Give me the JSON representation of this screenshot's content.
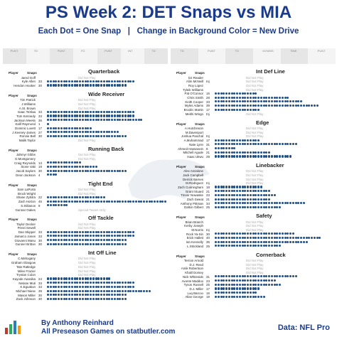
{
  "header": {
    "title": "PS Week 2: DET Snaps vs MIA",
    "subtitle_left": "Each Dot = One Snap",
    "subtitle_sep": "|",
    "subtitle_right": "Change in Background Color = New Drive"
  },
  "footer": {
    "byline": "By Anthony Reinhard",
    "byline2": "All Preseason Games on statbutler.com",
    "source": "Data: NFL Pro"
  },
  "labels": {
    "player": "Player",
    "snaps": "Snaps",
    "dnp": "Did Not Play",
    "special_teams": "Special Teams Only"
  },
  "drive_bars": {
    "offense": [
      "PUNT",
      "TD",
      "PUNT",
      "FG",
      "PUNT",
      "INT",
      "TD"
    ],
    "defense": [
      "TD",
      "PUNT",
      "TD",
      "DOWNS",
      "TIME",
      "PUNT"
    ]
  },
  "chart_data": {
    "type": "dot-strip",
    "title": "PS Week 2: DET Snaps vs MIA",
    "offense": [
      {
        "group": "Quarterback",
        "players": [
          {
            "name": "Jared Goff",
            "snaps": 0
          },
          {
            "name": "Kyle Allen",
            "snaps": 33
          },
          {
            "name": "Hendon Hooker",
            "snaps": 30
          }
        ]
      },
      {
        "group": "Wide Receiver",
        "players": [
          {
            "name": "Tim Patrick",
            "snaps": 0
          },
          {
            "name": "J.Williams",
            "snaps": 0
          },
          {
            "name": "A.St. Brown",
            "snaps": 0
          },
          {
            "name": "Isaac TeSlaa",
            "snaps": 33
          },
          {
            "name": "Tom Kennedy",
            "snaps": 33
          },
          {
            "name": "Jackson Meeks",
            "snaps": 36
          },
          {
            "name": "Kalif Raymond",
            "snaps": 1
          },
          {
            "name": "Dominic Lovett",
            "snaps": 17
          },
          {
            "name": "J.Keeney-James",
            "snaps": 27
          },
          {
            "name": "Ronnie Bell",
            "snaps": 30
          },
          {
            "name": "Malik Taylor",
            "snaps": 0
          }
        ]
      },
      {
        "group": "Running Back",
        "players": [
          {
            "name": "Jahmyr Gibbs",
            "snaps": 0
          },
          {
            "name": "D.Montgomery",
            "snaps": 0
          },
          {
            "name": "Craig Reynolds",
            "snaps": 13
          },
          {
            "name": "Sione Vaki",
            "snaps": 19
          },
          {
            "name": "Jacob Saylors",
            "snaps": 30
          },
          {
            "name": "Deon Jackson",
            "snaps": 4
          }
        ]
      },
      {
        "group": "Tight End",
        "players": [
          {
            "name": "Sam LaPorta",
            "snaps": 0
          },
          {
            "name": "Brock Wright",
            "snaps": 0
          },
          {
            "name": "Shane Zylstra",
            "snaps": 22
          },
          {
            "name": "Zach Horton",
            "snaps": 45
          },
          {
            "name": "S.Stilianos",
            "snaps": 8
          },
          {
            "name": "Gunnar Oakes",
            "snaps": 0,
            "note": "special_teams"
          }
        ]
      },
      {
        "group": "Off Tackle",
        "players": [
          {
            "name": "Taylor Decker",
            "snaps": 0
          },
          {
            "name": "Penei Sewell",
            "snaps": 0
          },
          {
            "name": "Dan Skipper",
            "snaps": 33
          },
          {
            "name": "Jamarco Jones",
            "snaps": 33
          },
          {
            "name": "Giovanni Manu",
            "snaps": 30
          },
          {
            "name": "Gunner Britton",
            "snaps": 30
          }
        ]
      },
      {
        "group": "Int Off Line",
        "players": [
          {
            "name": "C.Mahogany",
            "snaps": 0
          },
          {
            "name": "Graham Glasgow",
            "snaps": 0
          },
          {
            "name": "Tate Ratledge",
            "snaps": 0
          },
          {
            "name": "Miles Frazier",
            "snaps": 0
          },
          {
            "name": "Trystan Colon",
            "snaps": 0
          },
          {
            "name": "Kayode Awosika",
            "snaps": 24
          },
          {
            "name": "Netane Muti",
            "snaps": 33
          },
          {
            "name": "K.Eguakun",
            "snaps": 33
          },
          {
            "name": "Michael Niese",
            "snaps": 39
          },
          {
            "name": "Mason Miller",
            "snaps": 30
          },
          {
            "name": "Zack Johnson",
            "snaps": 30
          }
        ]
      }
    ],
    "defense": [
      {
        "group": "Int Def Line",
        "players": [
          {
            "name": "DJ Reader",
            "snaps": 0
          },
          {
            "name": "Alim McNeill",
            "snaps": 0,
            "note": "Inj"
          },
          {
            "name": "Roy Lopez",
            "snaps": 0
          },
          {
            "name": "Tyleik Williams",
            "snaps": 0
          },
          {
            "name": "Pat O'Connor",
            "snaps": 16
          },
          {
            "name": "Chris Smith",
            "snaps": 28
          },
          {
            "name": "Keith Cooper",
            "snaps": 33
          },
          {
            "name": "Myles Adams",
            "snaps": 39
          },
          {
            "name": "Brodric Martin",
            "snaps": 17
          },
          {
            "name": "Mekhi Wingo",
            "snaps": 0,
            "note": "Inj"
          }
        ]
      },
      {
        "group": "Edge",
        "players": [
          {
            "name": "A.Hutchinson",
            "snaps": 0
          },
          {
            "name": "M.Davenport",
            "snaps": 0
          },
          {
            "name": "Joshua Paschal",
            "snaps": 0,
            "note": "Inj"
          },
          {
            "name": "A.Muhammad",
            "snaps": 17
          },
          {
            "name": "Nate Lynn",
            "snaps": 31
          },
          {
            "name": "Ahmed Hassanein",
            "snaps": 8
          },
          {
            "name": "Mitchell Agude",
            "snaps": 21
          },
          {
            "name": "Isaac Ukwu",
            "snaps": 29
          }
        ]
      },
      {
        "group": "Linebacker",
        "players": [
          {
            "name": "Alex Anzalone",
            "snaps": 0
          },
          {
            "name": "Jack Campbell",
            "snaps": 0
          },
          {
            "name": "Derrick Barnes",
            "snaps": 0
          },
          {
            "name": "M.Rodriguez",
            "snaps": 0,
            "note": "Inj"
          },
          {
            "name": "Zach Cunningham",
            "snaps": 18
          },
          {
            "name": "Grant Stuard",
            "snaps": 21
          },
          {
            "name": "Trevor Nowaske",
            "snaps": 23
          },
          {
            "name": "Zach Sweat",
            "snaps": 21
          },
          {
            "name": "Anthony Pittman",
            "snaps": 34
          },
          {
            "name": "Dalton Gilbert",
            "snaps": 25
          }
        ]
      },
      {
        "group": "Safety",
        "players": [
          {
            "name": "Brian Branch",
            "snaps": 0
          },
          {
            "name": "Kerby Joseph",
            "snaps": 0
          },
          {
            "name": "M.Norris",
            "snaps": 0,
            "note": "Inj"
          },
          {
            "name": "Rock Ya-Sin",
            "snaps": 30
          },
          {
            "name": "Erick Hallett",
            "snaps": 40
          },
          {
            "name": "Ian Kennelly",
            "snaps": 35
          },
          {
            "name": "L.Strickland",
            "snaps": 25
          }
        ]
      },
      {
        "group": "Cornerback",
        "players": [
          {
            "name": "Terrion Arnold",
            "snaps": 0
          },
          {
            "name": "D.J. Reed",
            "snaps": 0
          },
          {
            "name": "Amik Robertson",
            "snaps": 0
          },
          {
            "name": "Khalil Dorsey",
            "snaps": 0
          },
          {
            "name": "Nick Whiteside",
            "snaps": 31
          },
          {
            "name": "Avonte Maddox",
            "snaps": 23
          },
          {
            "name": "Tyson Russell",
            "snaps": 25
          },
          {
            "name": "D.J. Miller",
            "snaps": 17
          },
          {
            "name": "Luq Barcoo",
            "snaps": 16
          },
          {
            "name": "Allan George",
            "snaps": 19
          }
        ]
      }
    ],
    "dot_color": "#1f4f85",
    "drive_colors": [
      "#e6e6e6",
      "#f4f4f4"
    ]
  }
}
